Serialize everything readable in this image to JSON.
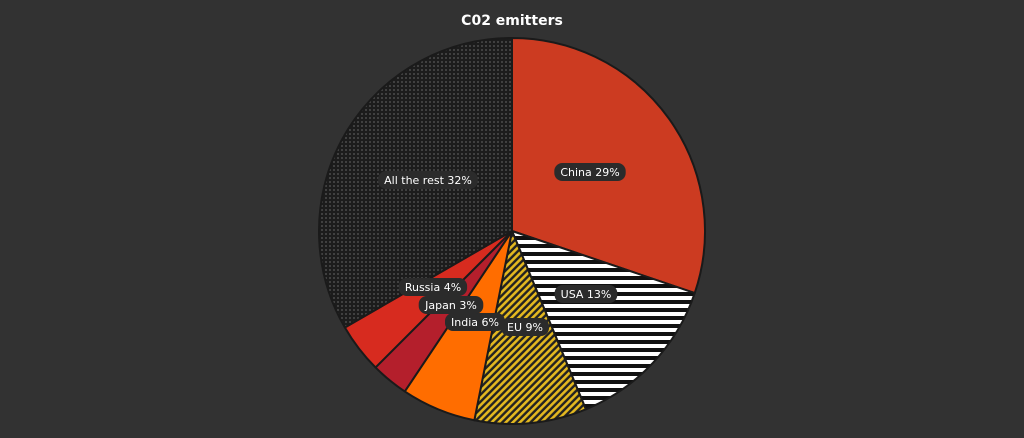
{
  "chart_data": {
    "type": "pie",
    "title": "C02 emitters",
    "start_angle_deg": 0,
    "direction": "clockwise",
    "slices": [
      {
        "name": "China",
        "value": 29,
        "label": "China 29%",
        "color": "#cc3b21",
        "pattern": "solid"
      },
      {
        "name": "USA",
        "value": 13,
        "label": "USA 13%",
        "color": "#ffffff",
        "pattern": "horizontal-stripes"
      },
      {
        "name": "EU",
        "value": 9,
        "label": "EU 9%",
        "color": "#e3b81f",
        "pattern": "diagonal-stripes"
      },
      {
        "name": "India",
        "value": 6,
        "label": "India 6%",
        "color": "#ff6d00",
        "pattern": "solid"
      },
      {
        "name": "Japan",
        "value": 3,
        "label": "Japan 3%",
        "color": "#b41f2c",
        "pattern": "solid"
      },
      {
        "name": "Russia",
        "value": 4,
        "label": "Russia 4%",
        "color": "#d72b1f",
        "pattern": "solid"
      },
      {
        "name": "All the rest",
        "value": 32,
        "label": "All the rest 32%",
        "color": "#222222",
        "pattern": "dots"
      }
    ],
    "colors": {
      "background": "#323232",
      "slice_border": "#1a1a1a",
      "label_background": "#2b2b2b",
      "text": "#ffffff"
    }
  }
}
